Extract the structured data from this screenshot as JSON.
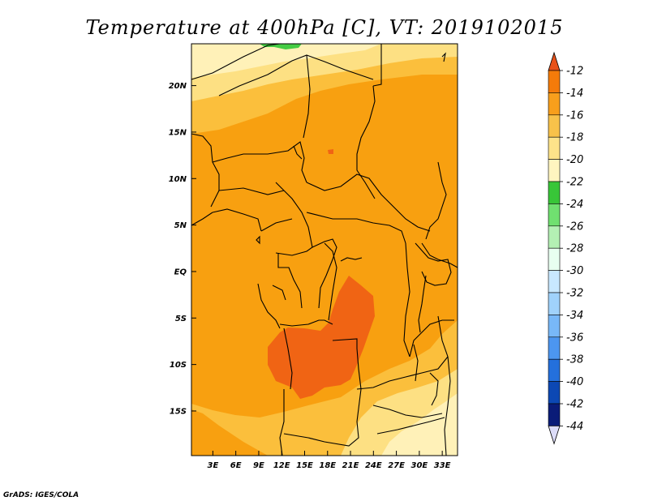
{
  "chart_data": {
    "type": "heatmap",
    "title": "Temperature at 400hPa [C], VT: 2019102015",
    "variable": "Temperature",
    "level": "400hPa",
    "units": "C",
    "valid_time": "2019102015",
    "x_ticks": [
      {
        "value": 3,
        "label": "3E"
      },
      {
        "value": 6,
        "label": "6E"
      },
      {
        "value": 9,
        "label": "9E"
      },
      {
        "value": 12,
        "label": "12E"
      },
      {
        "value": 15,
        "label": "15E"
      },
      {
        "value": 18,
        "label": "18E"
      },
      {
        "value": 21,
        "label": "21E"
      },
      {
        "value": 24,
        "label": "24E"
      },
      {
        "value": 27,
        "label": "27E"
      },
      {
        "value": 30,
        "label": "30E"
      },
      {
        "value": 33,
        "label": "33E"
      }
    ],
    "y_ticks": [
      {
        "value": 20,
        "label": "20N"
      },
      {
        "value": 15,
        "label": "15N"
      },
      {
        "value": 10,
        "label": "10N"
      },
      {
        "value": 5,
        "label": "5N"
      },
      {
        "value": 0,
        "label": "EQ"
      },
      {
        "value": -5,
        "label": "5S"
      },
      {
        "value": -10,
        "label": "10S"
      },
      {
        "value": -15,
        "label": "15S"
      }
    ],
    "xlim": [
      0.2,
      35
    ],
    "ylim": [
      -19.8,
      24.5
    ],
    "colorbar": {
      "labels": [
        "-12",
        "-14",
        "-16",
        "-18",
        "-20",
        "-22",
        "-24",
        "-26",
        "-28",
        "-30",
        "-32",
        "-34",
        "-36",
        "-38",
        "-40",
        "-42",
        "-44"
      ],
      "colors": [
        "#e8521a",
        "#f47b0a",
        "#f89f1c",
        "#f8c24a",
        "#fde38a",
        "#fff5c0",
        "#38c638",
        "#70e070",
        "#b4f0b4",
        "#e8fff0",
        "#c8e8ff",
        "#a0d2fb",
        "#78b8f8",
        "#4c96f0",
        "#2470dc",
        "#0c48b4",
        "#0a1c78",
        "#dcdcf8"
      ],
      "top_arrow_color": "#e8521a",
      "bottom_arrow_color": "#dcdcf8"
    },
    "regions": [
      {
        "name": "base",
        "value_range": "-16 to -14",
        "color": "#f8a010"
      },
      {
        "name": "north-band-1",
        "value_range": "-18 to -16",
        "color": "#fbbf3c"
      },
      {
        "name": "north-band-2",
        "value_range": "-20 to -18",
        "color": "#fde083"
      },
      {
        "name": "north-band-3",
        "value_range": "-22 to -20",
        "color": "#fff1b8"
      },
      {
        "name": "green-patch",
        "value_range": "-24 to -22",
        "color": "#44cc44"
      },
      {
        "name": "warm-core",
        "value_range": "-14 to -12",
        "color": "#f06414"
      },
      {
        "name": "south-east-band-1",
        "value_range": "-18 to -16",
        "color": "#fbbf3c"
      },
      {
        "name": "south-east-band-2",
        "value_range": "-20 to -18",
        "color": "#fde083"
      },
      {
        "name": "south-east-band-3",
        "value_range": "-22 to -20",
        "color": "#fff1b8"
      }
    ]
  },
  "credit": "GrADS: IGES/COLA"
}
